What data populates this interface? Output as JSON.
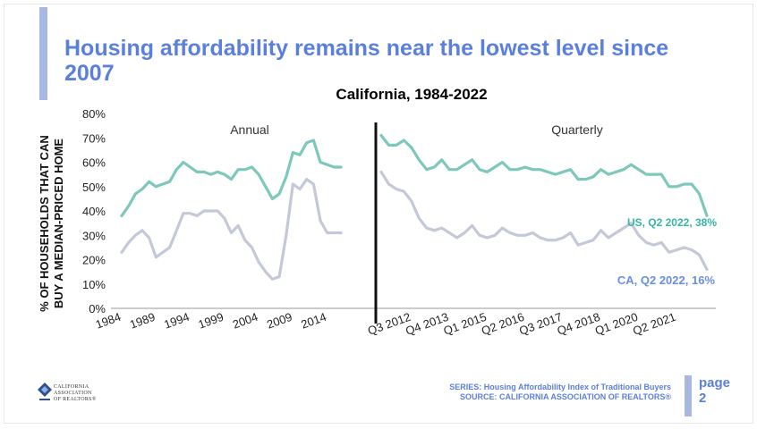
{
  "slide": {
    "headline": "Housing affordability remains near the lowest level since 2007",
    "page_word": "page",
    "page_number": "2",
    "series_note": "SERIES: Housing Affordability Index of Traditional Buyers",
    "source_note": "SOURCE: CALIFORNIA ASSOCIATION OF REALTORS®",
    "logo_lines": [
      "CALIFORNIA",
      "ASSOCIATION",
      "OF REALTORS®"
    ]
  },
  "colors": {
    "headline": "#5b7fdd",
    "accent": "#a8b8e3",
    "us_line": "#7ec8bb",
    "us_label": "#35b5a5",
    "ca_line": "#c5c8d9",
    "ca_label": "#6a8fe0",
    "divider": "#111111"
  },
  "chart_data": {
    "type": "line",
    "title": "California, 1984-2022",
    "ylabel_lines": [
      "% OF HOUSEHOLDS THAT CAN",
      "BUY A MEDIAN-PRICED HOME"
    ],
    "y_axis": {
      "min": 0,
      "max": 80,
      "step": 10,
      "unit": "%"
    },
    "section_labels": {
      "annual": "Annual",
      "quarterly": "Quarterly"
    },
    "annual": {
      "x": [
        1984,
        1985,
        1986,
        1987,
        1988,
        1989,
        1990,
        1991,
        1992,
        1993,
        1994,
        1995,
        1996,
        1997,
        1998,
        1999,
        2000,
        2001,
        2002,
        2003,
        2004,
        2005,
        2006,
        2007,
        2008,
        2009,
        2010,
        2011,
        2012,
        2013,
        2014,
        2015,
        2016
      ],
      "tick_labels": [
        "1984",
        "1989",
        "1994",
        "1999",
        "2004",
        "2009",
        "2014"
      ],
      "series": [
        {
          "name": "US",
          "values": [
            38,
            42,
            47,
            49,
            52,
            50,
            51,
            52,
            57,
            60,
            58,
            56,
            56,
            55,
            56,
            55,
            53,
            57,
            57,
            58,
            55,
            50,
            45,
            47,
            54,
            64,
            63,
            68,
            69,
            60,
            59,
            58,
            58
          ]
        },
        {
          "name": "CA",
          "values": [
            23,
            27,
            30,
            32,
            29,
            21,
            23,
            25,
            32,
            39,
            39,
            38,
            40,
            40,
            40,
            37,
            31,
            34,
            28,
            25,
            19,
            15,
            12,
            13,
            30,
            51,
            49,
            53,
            51,
            36,
            31,
            31,
            31
          ]
        }
      ]
    },
    "quarterly": {
      "x": [
        "Q3 2011",
        "Q4 2011",
        "Q1 2012",
        "Q2 2012",
        "Q3 2012",
        "Q4 2012",
        "Q1 2013",
        "Q2 2013",
        "Q3 2013",
        "Q4 2013",
        "Q1 2014",
        "Q2 2014",
        "Q3 2014",
        "Q4 2014",
        "Q1 2015",
        "Q2 2015",
        "Q3 2015",
        "Q4 2015",
        "Q1 2016",
        "Q2 2016",
        "Q3 2016",
        "Q4 2016",
        "Q1 2017",
        "Q2 2017",
        "Q3 2017",
        "Q4 2017",
        "Q1 2018",
        "Q2 2018",
        "Q3 2018",
        "Q4 2018",
        "Q1 2019",
        "Q2 2019",
        "Q3 2019",
        "Q4 2019",
        "Q1 2020",
        "Q2 2020",
        "Q3 2020",
        "Q4 2020",
        "Q1 2021",
        "Q2 2021",
        "Q3 2021",
        "Q4 2021",
        "Q1 2022",
        "Q2 2022"
      ],
      "tick_labels": [
        "Q3 2012",
        "Q4 2013",
        "Q1 2015",
        "Q2 2016",
        "Q3 2017",
        "Q4 2018",
        "Q1 2020",
        "Q2 2021"
      ],
      "series": [
        {
          "name": "US",
          "values": [
            71,
            67,
            67,
            69,
            66,
            61,
            57,
            58,
            61,
            57,
            57,
            59,
            61,
            57,
            56,
            58,
            60,
            57,
            57,
            58,
            57,
            57,
            56,
            55,
            56,
            57,
            53,
            53,
            54,
            57,
            55,
            56,
            57,
            59,
            57,
            55,
            55,
            55,
            50,
            50,
            51,
            51,
            47,
            38
          ]
        },
        {
          "name": "CA",
          "values": [
            56,
            51,
            49,
            48,
            44,
            37,
            33,
            32,
            33,
            31,
            29,
            31,
            34,
            30,
            29,
            30,
            33,
            31,
            30,
            30,
            31,
            29,
            28,
            28,
            29,
            31,
            26,
            27,
            28,
            32,
            29,
            31,
            33,
            35,
            30,
            27,
            26,
            27,
            23,
            24,
            25,
            24,
            22,
            16
          ]
        }
      ]
    },
    "annotations": {
      "us_end": "US, Q2 2022, 38%",
      "ca_end": "CA, Q2 2022, 16%"
    },
    "grid": false,
    "legend": "none"
  }
}
